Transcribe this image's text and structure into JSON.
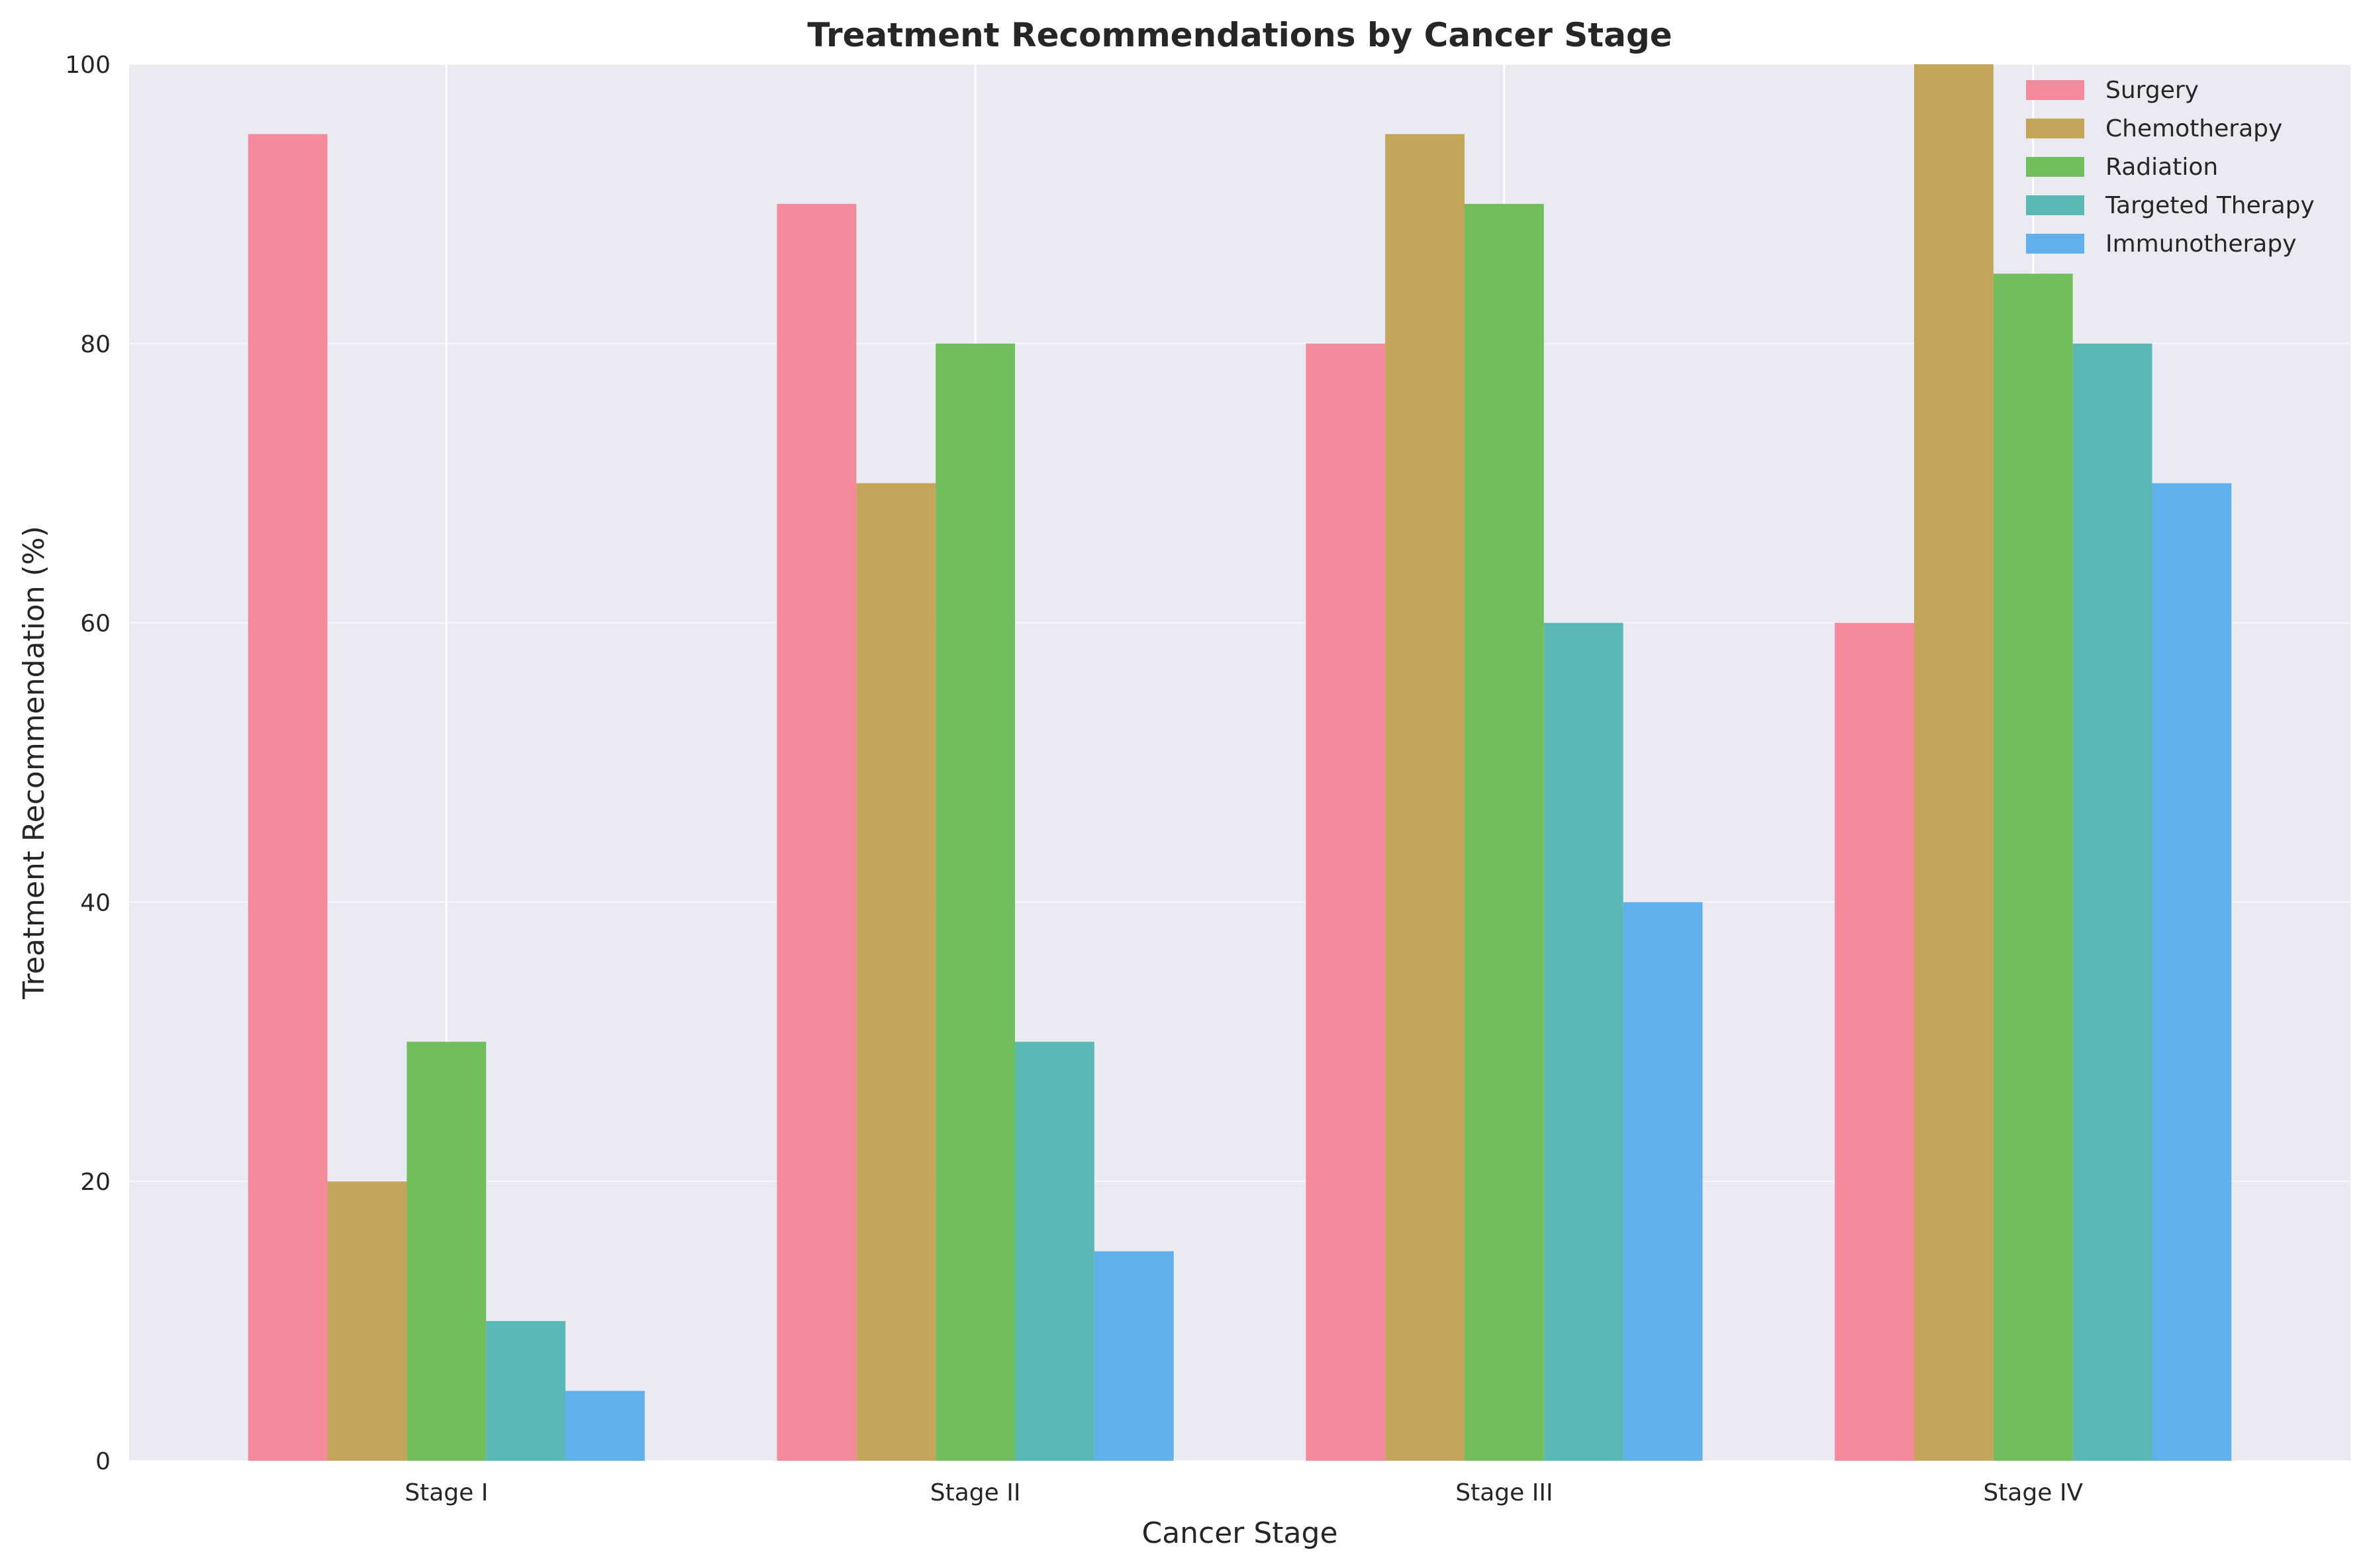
{
  "chart_data": {
    "type": "bar",
    "title": "Treatment Recommendations by Cancer Stage",
    "xlabel": "Cancer Stage",
    "ylabel": "Treatment Recommendation (%)",
    "categories": [
      "Stage I",
      "Stage II",
      "Stage III",
      "Stage IV"
    ],
    "ylim": [
      0,
      100
    ],
    "yticks": [
      0,
      20,
      40,
      60,
      80,
      100
    ],
    "grid": true,
    "legend_position": "top-right",
    "series": [
      {
        "name": "Surgery",
        "color": "#f48a9c",
        "values": [
          95,
          90,
          80,
          60
        ]
      },
      {
        "name": "Chemotherapy",
        "color": "#c4a55a",
        "values": [
          20,
          70,
          95,
          100
        ]
      },
      {
        "name": "Radiation",
        "color": "#72bd5c",
        "values": [
          30,
          80,
          90,
          85
        ]
      },
      {
        "name": "Targeted Therapy",
        "color": "#5bb9b5",
        "values": [
          10,
          30,
          60,
          80
        ]
      },
      {
        "name": "Immunotherapy",
        "color": "#60b0eb",
        "values": [
          5,
          15,
          40,
          70
        ]
      }
    ]
  }
}
